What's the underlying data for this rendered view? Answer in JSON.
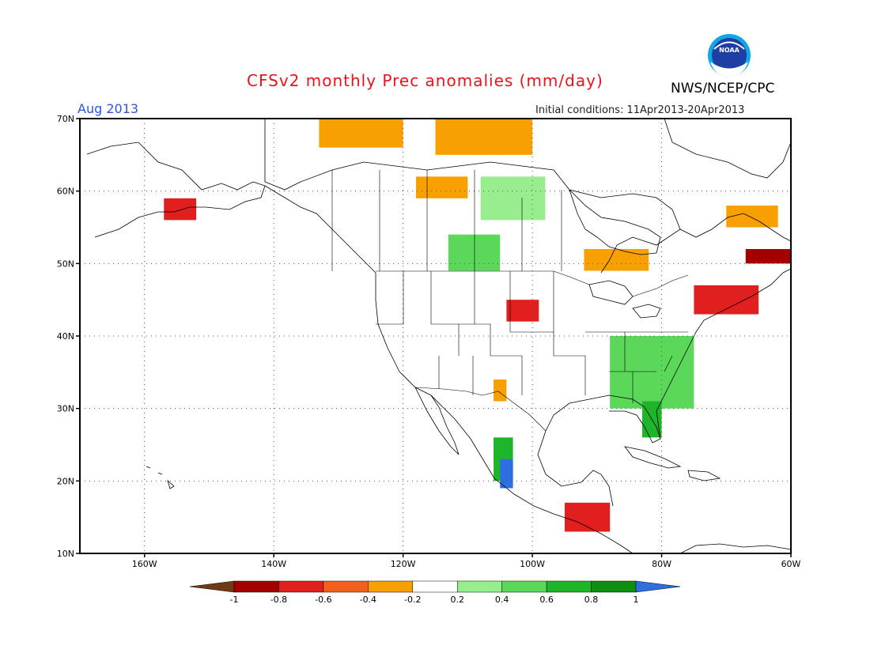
{
  "header": {
    "title": "CFSv2 monthly Prec anomalies (mm/day)",
    "month": "Aug 2013",
    "initial_conditions": "Initial conditions: 11Apr2013-20Apr2013",
    "agency": "NWS/NCEP/CPC",
    "logo_text": "NOAA"
  },
  "axes": {
    "lat_labels": [
      "70N",
      "60N",
      "50N",
      "40N",
      "30N",
      "20N",
      "10N"
    ],
    "lon_labels": [
      "160W",
      "140W",
      "120W",
      "100W",
      "80W",
      "60W"
    ],
    "lat_values": [
      70,
      60,
      50,
      40,
      30,
      20,
      10
    ],
    "lon_values": [
      -160,
      -140,
      -120,
      -100,
      -80,
      -60
    ]
  },
  "map_extent": {
    "lon_min": -170,
    "lon_max": -60,
    "lat_min": 10,
    "lat_max": 70
  },
  "colorbar": {
    "tick_labels": [
      "-1",
      "-0.8",
      "-0.6",
      "-0.4",
      "-0.2",
      "0.2",
      "0.4",
      "0.6",
      "0.8",
      "1"
    ],
    "colors": [
      "#6f3a14",
      "#a50000",
      "#e21f1f",
      "#f45f1f",
      "#f7a000",
      "#ffffff",
      "#98ee8e",
      "#5bd85a",
      "#1fb52a",
      "#0e8f12",
      "#2d6fe0"
    ]
  },
  "anomaly_regions": [
    {
      "lat": [
        56,
        59
      ],
      "lon": [
        -157,
        -152
      ],
      "level": "-0.6"
    },
    {
      "lat": [
        59,
        62
      ],
      "lon": [
        -118,
        -110
      ],
      "level": "-0.4"
    },
    {
      "lat": [
        66,
        70
      ],
      "lon": [
        -133,
        -120
      ],
      "level": "-0.4"
    },
    {
      "lat": [
        65,
        70
      ],
      "lon": [
        -115,
        -100
      ],
      "level": "-0.4"
    },
    {
      "lat": [
        42,
        45
      ],
      "lon": [
        -104,
        -99
      ],
      "level": "-0.6"
    },
    {
      "lat": [
        43,
        47
      ],
      "lon": [
        -75,
        -65
      ],
      "level": "-0.6"
    },
    {
      "lat": [
        50,
        52
      ],
      "lon": [
        -67,
        -60
      ],
      "level": "-0.8"
    },
    {
      "lat": [
        49,
        52
      ],
      "lon": [
        -92,
        -82
      ],
      "level": "-0.4"
    },
    {
      "lat": [
        55,
        58
      ],
      "lon": [
        -70,
        -62
      ],
      "level": "-0.4"
    },
    {
      "lat": [
        13,
        17
      ],
      "lon": [
        -95,
        -88
      ],
      "level": "-0.6"
    },
    {
      "lat": [
        31,
        34
      ],
      "lon": [
        -106,
        -104
      ],
      "level": "-0.4"
    },
    {
      "lat": [
        49,
        54
      ],
      "lon": [
        -113,
        -105
      ],
      "level": "0.4"
    },
    {
      "lat": [
        56,
        62
      ],
      "lon": [
        -108,
        -98
      ],
      "level": "0.2"
    },
    {
      "lat": [
        30,
        40
      ],
      "lon": [
        -88,
        -75
      ],
      "level": "0.4"
    },
    {
      "lat": [
        26,
        31
      ],
      "lon": [
        -83,
        -80
      ],
      "level": "0.6"
    },
    {
      "lat": [
        20,
        26
      ],
      "lon": [
        -106,
        -103
      ],
      "level": "0.6"
    },
    {
      "lat": [
        19,
        23
      ],
      "lon": [
        -105,
        -103
      ],
      "level": "1"
    }
  ]
}
